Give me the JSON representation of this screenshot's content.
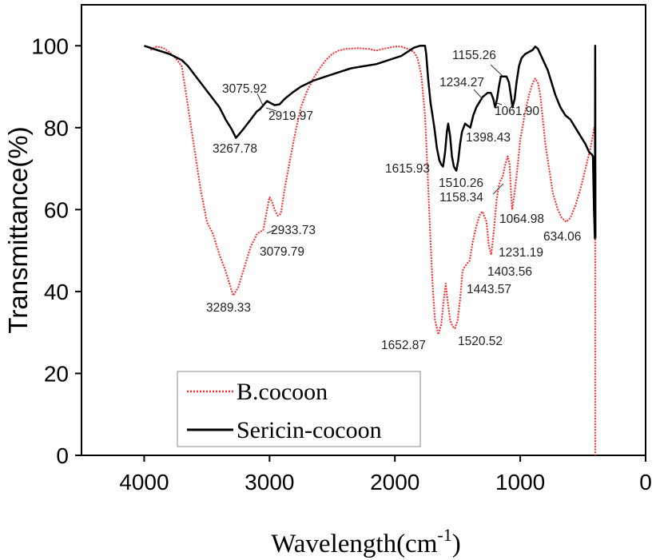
{
  "chart_data": {
    "type": "line",
    "xlabel": "Wavelength(cm",
    "xlabel_superscript": "-1",
    "xlabel_suffix": ")",
    "ylabel": "Transmittance(%)",
    "xlim": [
      4500,
      0
    ],
    "ylim": [
      0,
      100
    ],
    "xticks": [
      4000,
      3000,
      2000,
      1000,
      0
    ],
    "yticks": [
      0,
      20,
      40,
      60,
      80,
      100
    ],
    "grid": false,
    "legend_position": "bottom-left",
    "series": [
      {
        "name": "B.cocoon",
        "color": "#ff2a2a",
        "style": "dotted",
        "points": [
          [
            3950,
            99
          ],
          [
            3900,
            99.8
          ],
          [
            3850,
            99.5
          ],
          [
            3800,
            98.5
          ],
          [
            3750,
            97
          ],
          [
            3700,
            95
          ],
          [
            3650,
            85
          ],
          [
            3600,
            75
          ],
          [
            3550,
            65
          ],
          [
            3500,
            57
          ],
          [
            3450,
            54
          ],
          [
            3400,
            49
          ],
          [
            3350,
            45
          ],
          [
            3300,
            40
          ],
          [
            3289.33,
            39
          ],
          [
            3250,
            41
          ],
          [
            3200,
            46
          ],
          [
            3150,
            51
          ],
          [
            3100,
            54
          ],
          [
            3079.79,
            54.5
          ],
          [
            3050,
            55
          ],
          [
            3020,
            60
          ],
          [
            3000,
            63
          ],
          [
            2980,
            62
          ],
          [
            2960,
            60
          ],
          [
            2933.73,
            58.5
          ],
          [
            2910,
            59
          ],
          [
            2880,
            65
          ],
          [
            2850,
            70
          ],
          [
            2800,
            78
          ],
          [
            2750,
            85
          ],
          [
            2700,
            89
          ],
          [
            2650,
            92
          ],
          [
            2600,
            94.5
          ],
          [
            2550,
            96.5
          ],
          [
            2500,
            98
          ],
          [
            2450,
            98.8
          ],
          [
            2400,
            99.2
          ],
          [
            2300,
            99.4
          ],
          [
            2200,
            99.2
          ],
          [
            2150,
            98.8
          ],
          [
            2100,
            99.2
          ],
          [
            2050,
            99.5
          ],
          [
            2000,
            99.8
          ],
          [
            1950,
            99.8
          ],
          [
            1900,
            99.3
          ],
          [
            1850,
            98.5
          ],
          [
            1820,
            97
          ],
          [
            1790,
            93
          ],
          [
            1760,
            83
          ],
          [
            1740,
            70
          ],
          [
            1720,
            55
          ],
          [
            1700,
            42
          ],
          [
            1680,
            33
          ],
          [
            1652.87,
            29.5
          ],
          [
            1630,
            32
          ],
          [
            1610,
            38
          ],
          [
            1595,
            42
          ],
          [
            1580,
            38
          ],
          [
            1560,
            33
          ],
          [
            1540,
            31.5
          ],
          [
            1520.52,
            31
          ],
          [
            1500,
            33
          ],
          [
            1480,
            38
          ],
          [
            1460,
            45
          ],
          [
            1443.57,
            46
          ],
          [
            1420,
            47
          ],
          [
            1403.56,
            47.5
          ],
          [
            1380,
            52
          ],
          [
            1350,
            56
          ],
          [
            1320,
            59
          ],
          [
            1300,
            59.5
          ],
          [
            1270,
            57
          ],
          [
            1250,
            51
          ],
          [
            1231.19,
            49
          ],
          [
            1210,
            55
          ],
          [
            1190,
            62
          ],
          [
            1170,
            66
          ],
          [
            1158.34,
            67
          ],
          [
            1140,
            68
          ],
          [
            1120,
            71
          ],
          [
            1100,
            73
          ],
          [
            1085,
            71
          ],
          [
            1075,
            65
          ],
          [
            1064.98,
            60
          ],
          [
            1050,
            63
          ],
          [
            1030,
            68
          ],
          [
            1000,
            77
          ],
          [
            960,
            84
          ],
          [
            930,
            88
          ],
          [
            900,
            91
          ],
          [
            880,
            92
          ],
          [
            860,
            91
          ],
          [
            840,
            88
          ],
          [
            820,
            82
          ],
          [
            800,
            76
          ],
          [
            770,
            70
          ],
          [
            740,
            64
          ],
          [
            700,
            60
          ],
          [
            670,
            58
          ],
          [
            634.06,
            57
          ],
          [
            600,
            58
          ],
          [
            560,
            61
          ],
          [
            520,
            65
          ],
          [
            480,
            70
          ],
          [
            440,
            75
          ],
          [
            410,
            80
          ],
          [
            402,
            79.5
          ],
          [
            402,
            0
          ]
        ]
      },
      {
        "name": "Sericin-cocoon",
        "color": "#000000",
        "style": "solid",
        "points": [
          [
            4000,
            100
          ],
          [
            3900,
            99
          ],
          [
            3800,
            98
          ],
          [
            3700,
            96.5
          ],
          [
            3650,
            95
          ],
          [
            3600,
            93
          ],
          [
            3550,
            91
          ],
          [
            3500,
            89
          ],
          [
            3450,
            87
          ],
          [
            3400,
            85
          ],
          [
            3350,
            82
          ],
          [
            3300,
            79.5
          ],
          [
            3267.78,
            77.5
          ],
          [
            3240,
            78.5
          ],
          [
            3200,
            80
          ],
          [
            3150,
            82
          ],
          [
            3100,
            84
          ],
          [
            3075.92,
            84.5
          ],
          [
            3050,
            85.5
          ],
          [
            3020,
            86.5
          ],
          [
            2990,
            86
          ],
          [
            2960,
            85.5
          ],
          [
            2919.97,
            85.7
          ],
          [
            2880,
            87
          ],
          [
            2820,
            88.5
          ],
          [
            2750,
            90
          ],
          [
            2650,
            91.5
          ],
          [
            2550,
            92.5
          ],
          [
            2450,
            93.5
          ],
          [
            2350,
            94.5
          ],
          [
            2250,
            95
          ],
          [
            2150,
            95.5
          ],
          [
            2050,
            96.5
          ],
          [
            1950,
            97.5
          ],
          [
            1900,
            98.5
          ],
          [
            1850,
            99.5
          ],
          [
            1800,
            100
          ],
          [
            1760,
            100
          ],
          [
            1750,
            98
          ],
          [
            1735,
            92
          ],
          [
            1715,
            86
          ],
          [
            1700,
            83
          ],
          [
            1685,
            80
          ],
          [
            1665,
            75
          ],
          [
            1645,
            72
          ],
          [
            1630,
            71
          ],
          [
            1615.93,
            70.5
          ],
          [
            1600,
            74
          ],
          [
            1585,
            79
          ],
          [
            1575,
            81
          ],
          [
            1560,
            78
          ],
          [
            1545,
            73
          ],
          [
            1530,
            70.5
          ],
          [
            1510.26,
            69.5
          ],
          [
            1495,
            72
          ],
          [
            1480,
            76
          ],
          [
            1465,
            79
          ],
          [
            1440,
            81
          ],
          [
            1420,
            80.5
          ],
          [
            1398.43,
            80
          ],
          [
            1375,
            83
          ],
          [
            1350,
            85
          ],
          [
            1320,
            86.5
          ],
          [
            1300,
            87.5
          ],
          [
            1280,
            88
          ],
          [
            1260,
            88.5
          ],
          [
            1234.27,
            88.5
          ],
          [
            1215,
            87
          ],
          [
            1200,
            85
          ],
          [
            1185,
            87
          ],
          [
            1170,
            90
          ],
          [
            1155.26,
            92.5
          ],
          [
            1130,
            92.5
          ],
          [
            1110,
            92.5
          ],
          [
            1090,
            91
          ],
          [
            1075,
            88
          ],
          [
            1061.9,
            85
          ],
          [
            1045,
            87
          ],
          [
            1030,
            91
          ],
          [
            1010,
            95
          ],
          [
            990,
            97
          ],
          [
            960,
            98
          ],
          [
            930,
            98.5
          ],
          [
            900,
            99
          ],
          [
            880,
            99.8
          ],
          [
            860,
            99.3
          ],
          [
            840,
            98
          ],
          [
            810,
            96
          ],
          [
            780,
            94
          ],
          [
            750,
            91
          ],
          [
            720,
            88
          ],
          [
            680,
            85
          ],
          [
            640,
            83
          ],
          [
            600,
            82
          ],
          [
            560,
            80
          ],
          [
            520,
            78
          ],
          [
            480,
            76
          ],
          [
            450,
            74
          ],
          [
            430,
            73.5
          ],
          [
            420,
            73
          ],
          [
            412,
            60
          ],
          [
            405,
            53
          ],
          [
            402,
            100
          ],
          [
            400,
            53
          ]
        ]
      }
    ],
    "annotations": [
      {
        "text": "3075.92",
        "series": "Sericin-cocoon"
      },
      {
        "text": "2919.97",
        "series": "Sericin-cocoon"
      },
      {
        "text": "3267.78",
        "series": "Sericin-cocoon"
      },
      {
        "text": "1615.93",
        "series": "Sericin-cocoon"
      },
      {
        "text": "1510.26",
        "series": "Sericin-cocoon"
      },
      {
        "text": "1398.43",
        "series": "Sericin-cocoon"
      },
      {
        "text": "1234.27",
        "series": "Sericin-cocoon"
      },
      {
        "text": "1155.26",
        "series": "Sericin-cocoon"
      },
      {
        "text": "1061.90",
        "series": "Sericin-cocoon"
      },
      {
        "text": "1158.34",
        "series": "B.cocoon"
      },
      {
        "text": "1064.98",
        "series": "B.cocoon"
      },
      {
        "text": "634.06",
        "series": "B.cocoon"
      },
      {
        "text": "1231.19",
        "series": "B.cocoon"
      },
      {
        "text": "1403.56",
        "series": "B.cocoon"
      },
      {
        "text": "1443.57",
        "series": "B.cocoon"
      },
      {
        "text": "1520.52",
        "series": "B.cocoon"
      },
      {
        "text": "1652.87",
        "series": "B.cocoon"
      },
      {
        "text": "2933.73",
        "series": "B.cocoon"
      },
      {
        "text": "3079.79",
        "series": "B.cocoon"
      },
      {
        "text": "3289.33",
        "series": "B.cocoon"
      }
    ]
  }
}
